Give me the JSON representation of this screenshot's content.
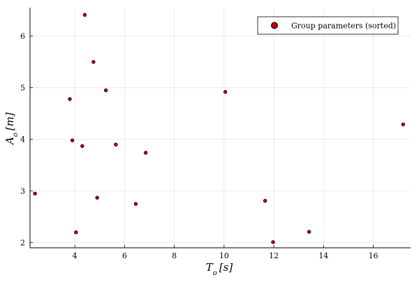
{
  "chart_data": {
    "type": "scatter",
    "xlabel": "T_o [s]",
    "ylabel": "A_o [m]",
    "xlim": [
      2.2,
      17.5
    ],
    "ylim": [
      1.9,
      6.55
    ],
    "xticks": [
      4,
      6,
      8,
      10,
      12,
      14,
      16
    ],
    "yticks": [
      2,
      3,
      4,
      5,
      6
    ],
    "grid": true,
    "legend_position": "top-right",
    "series": [
      {
        "name": "Group parameters (sorted)",
        "color": "#c00000",
        "points": [
          {
            "x": 2.4,
            "y": 2.95
          },
          {
            "x": 3.8,
            "y": 4.78
          },
          {
            "x": 3.9,
            "y": 3.98
          },
          {
            "x": 4.05,
            "y": 2.2
          },
          {
            "x": 4.3,
            "y": 3.87
          },
          {
            "x": 4.4,
            "y": 6.41
          },
          {
            "x": 4.75,
            "y": 5.5
          },
          {
            "x": 4.9,
            "y": 2.87
          },
          {
            "x": 5.25,
            "y": 4.95
          },
          {
            "x": 5.65,
            "y": 3.9
          },
          {
            "x": 6.45,
            "y": 2.75
          },
          {
            "x": 6.85,
            "y": 3.74
          },
          {
            "x": 10.05,
            "y": 4.92
          },
          {
            "x": 11.65,
            "y": 2.81
          },
          {
            "x": 11.97,
            "y": 2.01
          },
          {
            "x": 13.42,
            "y": 2.21
          },
          {
            "x": 17.2,
            "y": 4.29
          }
        ]
      }
    ]
  }
}
